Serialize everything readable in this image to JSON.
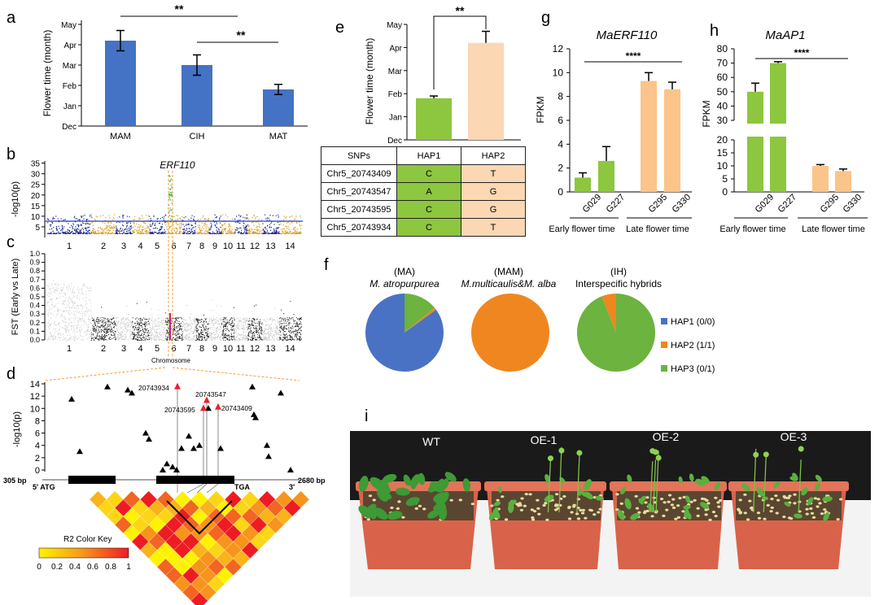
{
  "panels": {
    "a": {
      "letter": "a",
      "ylabel": "Flower time (month)",
      "ytick_labels": [
        "Dec",
        "Jan",
        "Feb",
        "Mar",
        "Apr",
        "May"
      ],
      "significance": [
        "**",
        "**"
      ]
    },
    "b": {
      "letter": "b",
      "ylabel": "-log10(p)",
      "gene_label": "ERF110",
      "yticks": [
        "5",
        "10",
        "15",
        "20",
        "25",
        "30",
        "35"
      ],
      "chromosomes": [
        "1",
        "2",
        "3",
        "4",
        "5",
        "6",
        "7",
        "8",
        "9",
        "10",
        "11",
        "12",
        "13",
        "14"
      ]
    },
    "c": {
      "letter": "c",
      "ylabel": "FST (Early vs Late)",
      "xlabel": "Chromosome",
      "yticks": [
        "0.0",
        "0.1",
        "0.2",
        "0.3",
        "0.4",
        "0.5",
        "0.6",
        "0.7",
        "0.8",
        "0.9",
        "1.0"
      ],
      "chromosomes": [
        "1",
        "2",
        "3",
        "4",
        "5",
        "6",
        "7",
        "8",
        "9",
        "10",
        "11",
        "12",
        "13",
        "14"
      ]
    },
    "d": {
      "letter": "d",
      "ylabel": "-log10(p)",
      "yticks": [
        "0",
        "2",
        "4",
        "6",
        "8",
        "10",
        "12",
        "14"
      ],
      "snp_labels": [
        "20743934",
        "20743547",
        "20743595",
        "20743409"
      ],
      "gene_start": "305 bp",
      "gene_end": "2680 bp",
      "five_prime": "5' ATG",
      "stop": "TGA",
      "three_prime": "3'",
      "key_title": "R2 Color Key",
      "key_ticks": [
        "0",
        "0.2",
        "0.4",
        "0.6",
        "0.8",
        "1"
      ]
    },
    "e": {
      "letter": "e",
      "ylabel": "Flower time (month)",
      "ytick_labels": [
        "Dec",
        "Jan",
        "Feb",
        "Mar",
        "Apr",
        "May"
      ],
      "significance": "**"
    },
    "f": {
      "letter": "f",
      "groups": [
        {
          "code": "(MA)",
          "name": "M. atropurpurea"
        },
        {
          "code": "(MAM)",
          "name": "M.multicaulis&M. alba"
        },
        {
          "code": "(IH)",
          "name": "Interspecific hybrids"
        }
      ],
      "legend": [
        "HAP1 (0/0)",
        "HAP2 (1/1)",
        "HAP3 (0/1)"
      ]
    },
    "g": {
      "letter": "g",
      "title": "MaERF110",
      "ylabel": "FPKM",
      "yticks": [
        "0",
        "2",
        "4",
        "6",
        "8",
        "10",
        "12"
      ],
      "significance": "****",
      "bar_labels": [
        "G029",
        "G227",
        "G295",
        "G330"
      ],
      "group_labels": [
        "Early flower time",
        "Late flower time"
      ]
    },
    "h": {
      "letter": "h",
      "title": "MaAP1",
      "ylabel": "FPKM",
      "yticks": [
        "0",
        "5",
        "10",
        "15",
        "20",
        "30",
        "40",
        "50",
        "60",
        "70",
        "80"
      ],
      "significance": "****",
      "bar_labels": [
        "G029",
        "G227",
        "G295",
        "G330"
      ],
      "group_labels": [
        "Early flower time",
        "Late flower time"
      ]
    },
    "i": {
      "letter": "i",
      "labels": [
        "WT",
        "OE-1",
        "OE-2",
        "OE-3"
      ]
    }
  },
  "table": {
    "headers": [
      "SNPs",
      "HAP1",
      "HAP2"
    ],
    "rows": [
      [
        "Chr5_20743409",
        "C",
        "T"
      ],
      [
        "Chr5_20743547",
        "A",
        "G"
      ],
      [
        "Chr5_20743595",
        "C",
        "G"
      ],
      [
        "Chr5_20743934",
        "C",
        "T"
      ]
    ]
  },
  "colors": {
    "blue": "#4472c4",
    "green": "#8dc63f",
    "peach": "#fbd7b3",
    "orange": "#f0861f",
    "pie_blue": "#4a72c4",
    "pie_green": "#6cb33f",
    "gold": "#d9a025",
    "navy": "#1f2a8c"
  },
  "chart_data": [
    {
      "panel": "a",
      "type": "bar",
      "categories": [
        "MAM",
        "CIH",
        "MAT"
      ],
      "values": [
        4.2,
        3.0,
        1.8
      ],
      "errors": [
        0.5,
        0.5,
        0.25
      ],
      "ylim": [
        0,
        5
      ],
      "ylabel": "Flower time (month)"
    },
    {
      "panel": "e",
      "type": "bar",
      "categories": [
        "HAP1",
        "HAP2"
      ],
      "values": [
        1.8,
        4.2
      ],
      "errors": [
        0.1,
        0.5
      ],
      "ylim": [
        0,
        5
      ],
      "ylabel": "Flower time (month)"
    },
    {
      "panel": "g",
      "type": "bar",
      "title": "MaERF110",
      "categories": [
        "G029",
        "G227",
        "G295",
        "G330"
      ],
      "values": [
        1.2,
        2.6,
        9.3,
        8.6
      ],
      "errors": [
        0.4,
        1.2,
        0.7,
        0.6
      ],
      "ylim": [
        0,
        12
      ],
      "ylabel": "FPKM"
    },
    {
      "panel": "h",
      "type": "bar",
      "title": "MaAP1",
      "categories": [
        "G029",
        "G227",
        "G295",
        "G330"
      ],
      "values": [
        50,
        70,
        10,
        8
      ],
      "errors": [
        6,
        1,
        0.5,
        0.8
      ],
      "ylim": [
        0,
        80
      ],
      "ylabel": "FPKM"
    },
    {
      "panel": "f",
      "type": "pie",
      "groups": [
        "(MA)",
        "(MAM)",
        "(IH)"
      ],
      "series": [
        {
          "name": "HAP1 (0/0)",
          "values": [
            85,
            0,
            0
          ]
        },
        {
          "name": "HAP2 (1/1)",
          "values": [
            1,
            100,
            6
          ]
        },
        {
          "name": "HAP3 (0/1)",
          "values": [
            14,
            0,
            94
          ]
        }
      ]
    },
    {
      "panel": "d",
      "type": "scatter",
      "name": "snp_points",
      "y": [
        13.5,
        13,
        12.5,
        11.5,
        10,
        8.5,
        6,
        3,
        3.5,
        4,
        5.5,
        5,
        3.5,
        1,
        0,
        0.5,
        0,
        2.2,
        3.5,
        13.5,
        12.5,
        9,
        4,
        0
      ],
      "highlight": [
        {
          "label": "20743934",
          "y": 13.5
        },
        {
          "label": "20743547",
          "y": 11.3
        },
        {
          "label": "20743595",
          "y": 10
        },
        {
          "label": "20743409",
          "y": 10.2
        }
      ],
      "ylim": [
        0,
        14
      ]
    }
  ]
}
